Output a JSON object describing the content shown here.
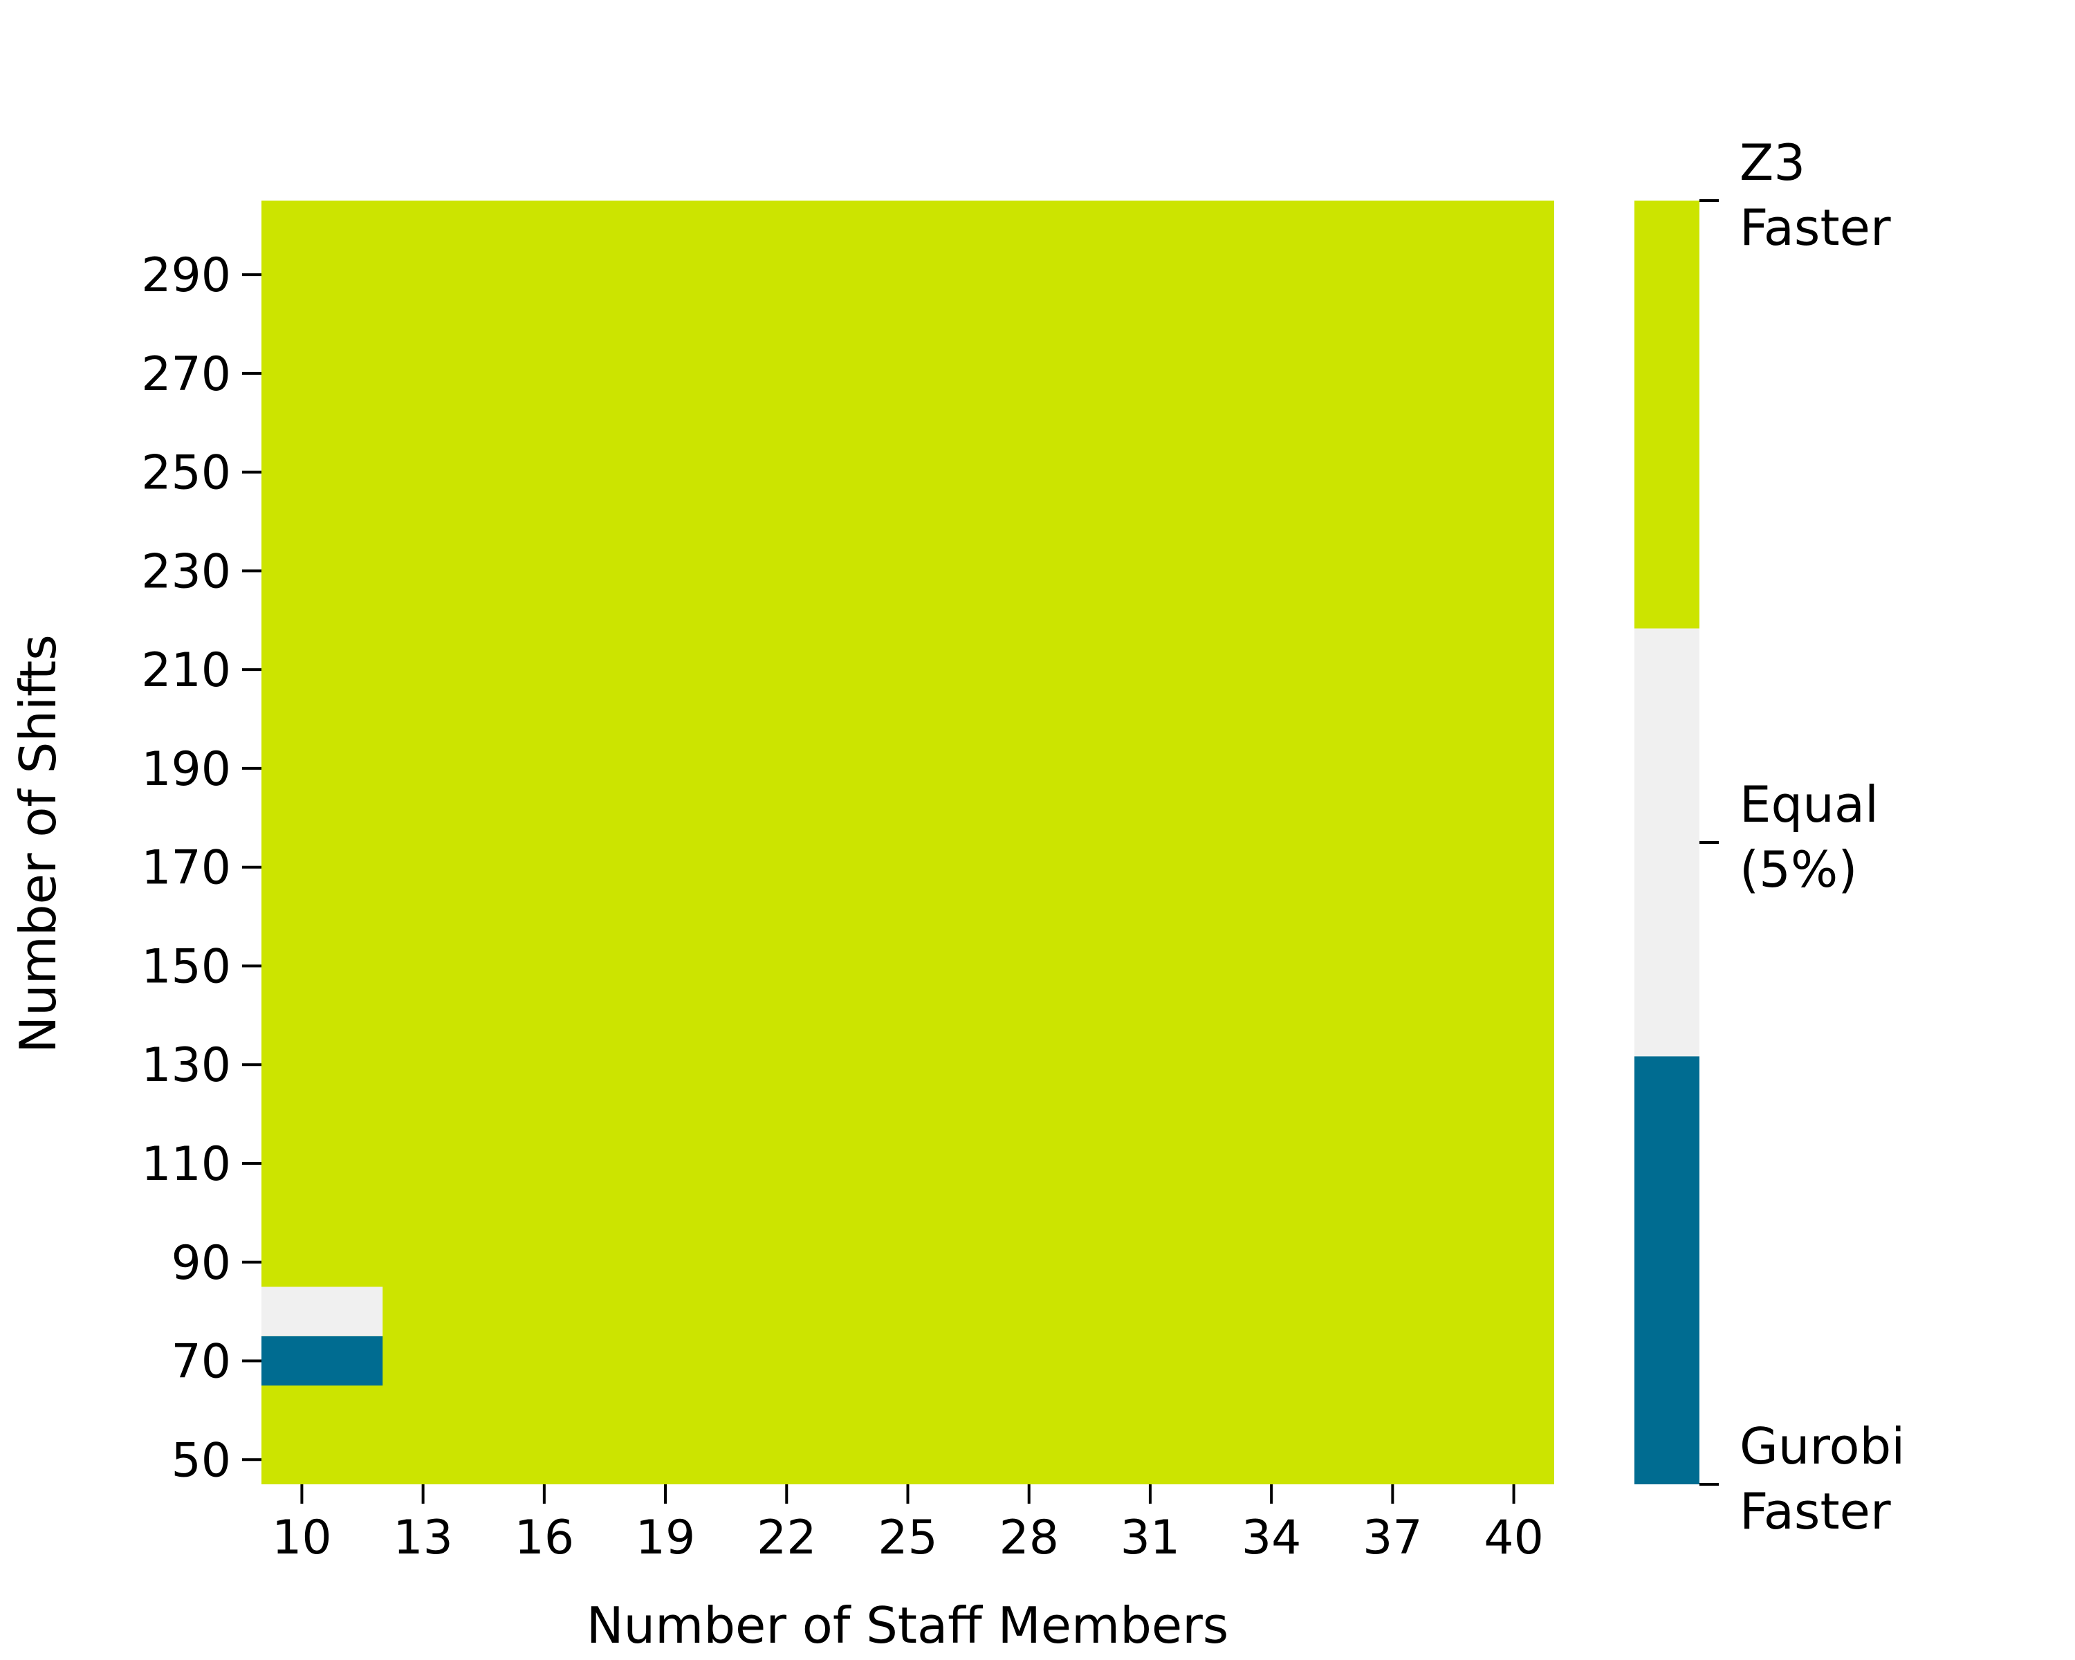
{
  "chart_data": {
    "type": "heatmap",
    "title": "",
    "xlabel": "Number of Staff Members",
    "ylabel": "Number of Shifts",
    "x_ticks": [
      "10",
      "13",
      "16",
      "19",
      "22",
      "25",
      "28",
      "31",
      "34",
      "37",
      "40"
    ],
    "y_ticks": [
      "50",
      "70",
      "90",
      "110",
      "130",
      "150",
      "170",
      "190",
      "210",
      "230",
      "250",
      "270",
      "290"
    ],
    "x_range": [
      9,
      41
    ],
    "y_range": [
      45,
      305
    ],
    "default_category": 1,
    "special_cells": [
      {
        "x": [
          9,
          12
        ],
        "y": [
          65,
          75
        ],
        "category": -1
      },
      {
        "x": [
          9,
          12
        ],
        "y": [
          75,
          85
        ],
        "category": 0
      }
    ],
    "colorbar": {
      "categories": [
        {
          "value": 1,
          "label": [
            "Z3",
            "Faster"
          ],
          "color": "#cce400"
        },
        {
          "value": 0,
          "label": [
            "Equal",
            "(5%)"
          ],
          "color": "#f0f0f0"
        },
        {
          "value": -1,
          "label": [
            "Gurobi",
            "Faster"
          ],
          "color": "#006c91"
        }
      ]
    },
    "grid": false,
    "legend": "colorbar-right"
  }
}
